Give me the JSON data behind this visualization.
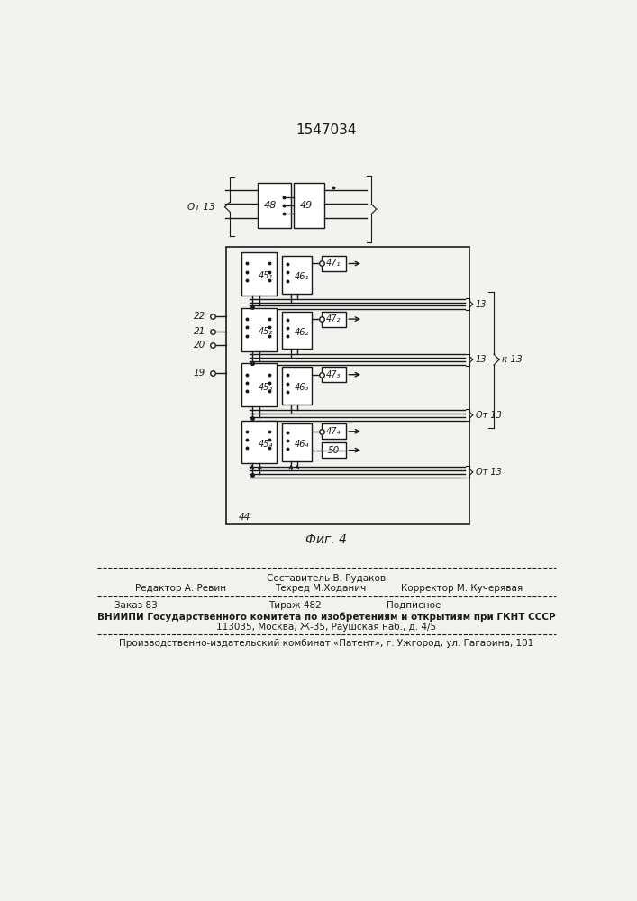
{
  "title": "1547034",
  "fig_label": "Фиг. 4",
  "bg_color": "#f2f2ee",
  "line_color": "#1a1a1a",
  "box_fill": "#ffffff",
  "footer": {
    "line1_center": "Составитель В. Рудаков",
    "line2_left": "Редактор А. Ревин",
    "line2_center": "Техред М.Ходанич",
    "line2_right": "Корректор М. Кучерявая",
    "line3_left": "Заказ 83",
    "line3_center": "Тираж 482",
    "line3_right": "Подписное",
    "line4": "ВНИИПИ Государственного комитета по изобретениям и открытиям при ГКНТ СССР",
    "line5": "113035, Москва, Ж-35, Раушская наб., д. 4/5",
    "line6": "Производственно-издательский комбинат «Патент», г. Ужгород, ул. Гагарина, 101"
  }
}
